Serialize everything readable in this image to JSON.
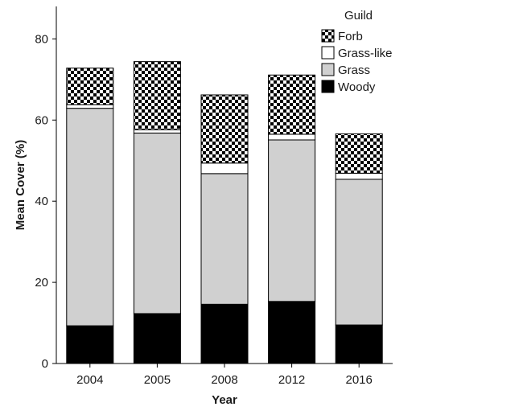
{
  "chart_data": {
    "type": "bar",
    "stacked": true,
    "categories": [
      "2004",
      "2005",
      "2008",
      "2012",
      "2016"
    ],
    "series": [
      {
        "name": "Woody",
        "values": [
          9.3,
          12.3,
          14.6,
          15.3,
          9.5
        ],
        "fill": "#000000",
        "pattern": "solid"
      },
      {
        "name": "Grass",
        "values": [
          53.6,
          44.5,
          32.2,
          39.8,
          35.9
        ],
        "fill": "#d0d0d0",
        "pattern": "solid"
      },
      {
        "name": "Grass-like",
        "values": [
          0.9,
          0.8,
          2.6,
          1.4,
          1.5
        ],
        "fill": "#ffffff",
        "pattern": "solid"
      },
      {
        "name": "Forb",
        "values": [
          9.0,
          16.8,
          16.8,
          14.6,
          9.7
        ],
        "fill": "#000000",
        "pattern": "checkerboard"
      }
    ],
    "xlabel": "Year",
    "ylabel": "Mean Cover (%)",
    "ylim": [
      0,
      88
    ],
    "yticks": [
      0,
      20,
      40,
      60,
      80
    ],
    "grid": false,
    "legend": {
      "title": "Guild",
      "position": "top-right",
      "order": [
        "Forb",
        "Grass-like",
        "Grass",
        "Woody"
      ]
    }
  }
}
